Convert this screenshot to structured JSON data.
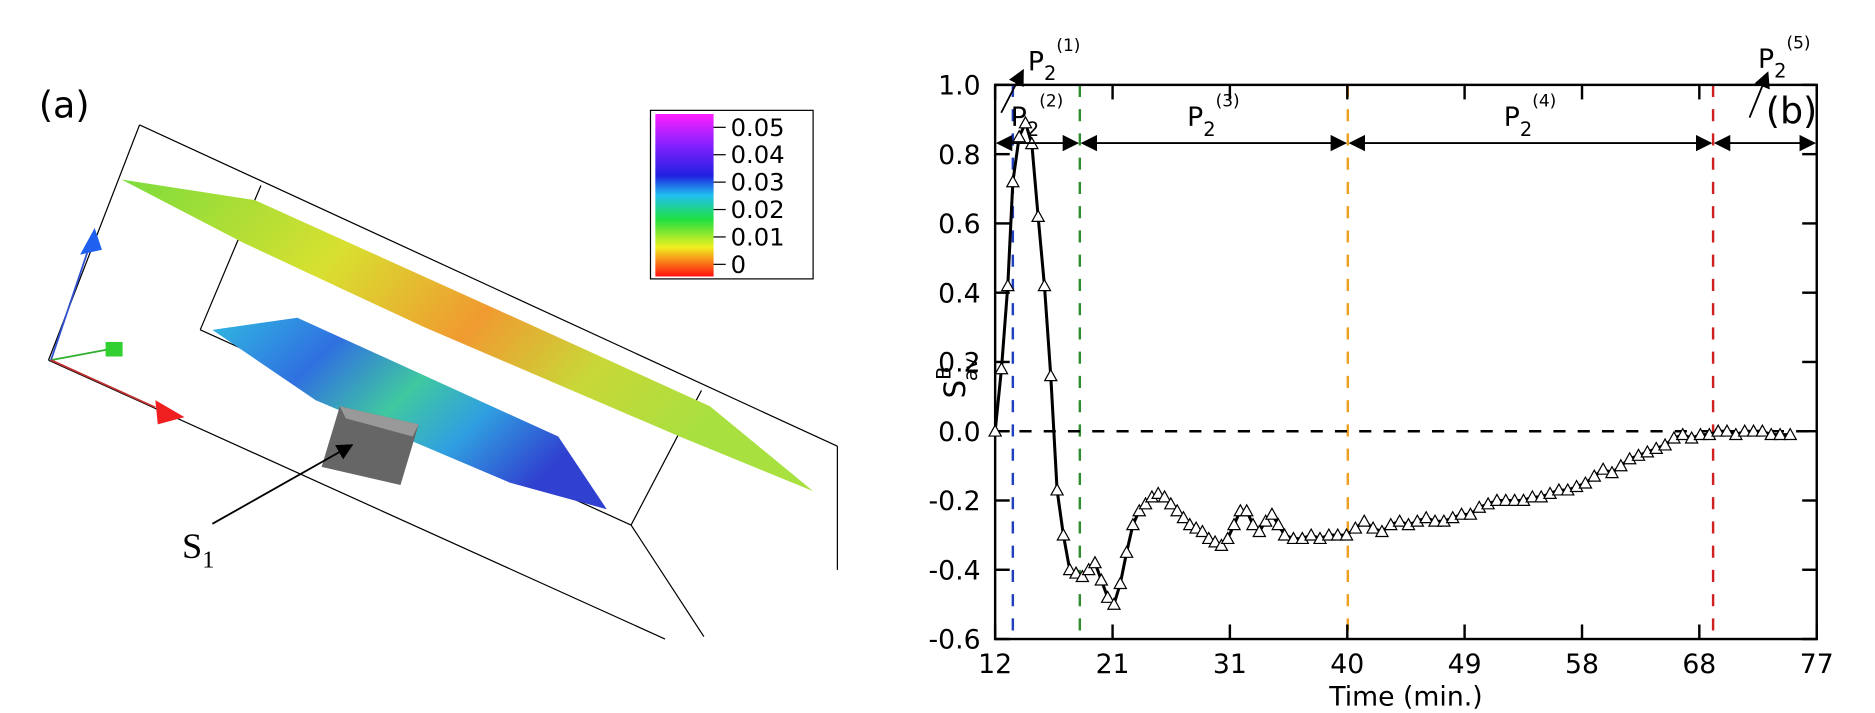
{
  "panel_a": {
    "label": "(a)",
    "colorbar": {
      "lim": [
        0,
        0.05
      ],
      "ticks": [
        0.05,
        0.04,
        0.03,
        0.02,
        0.01,
        0
      ]
    },
    "annotation": {
      "text": "S",
      "subscript": "1"
    }
  },
  "chart_data": {
    "type": "line",
    "panel_label": "(b)",
    "x_label": "Time (min.)",
    "y_label": {
      "text": "S",
      "superscript": "B",
      "subscript": "av"
    },
    "xlim": [
      12,
      77
    ],
    "ylim": [
      -0.6,
      1.0
    ],
    "xticks": [
      12,
      {
        "value": 21.29,
        "label": "21"
      },
      {
        "value": 30.57,
        "label": "31"
      },
      {
        "value": 39.86,
        "label": "40"
      },
      {
        "value": 49.14,
        "label": "49"
      },
      {
        "value": 58.43,
        "label": "58"
      },
      {
        "value": 67.71,
        "label": "68"
      },
      77
    ],
    "yticks": [
      -0.6,
      -0.4,
      -0.2,
      {
        "value": 0,
        "label": "0.0"
      },
      0.2,
      0.4,
      0.6,
      0.8,
      {
        "value": 1,
        "label": "1.0"
      }
    ],
    "color": "#000000",
    "marker": "triangle",
    "x": [
      12.0,
      12.5,
      13.0,
      13.4,
      13.9,
      14.4,
      14.9,
      15.4,
      15.9,
      16.4,
      16.9,
      17.4,
      17.9,
      18.4,
      18.9,
      19.4,
      19.9,
      20.4,
      20.9,
      21.4,
      21.9,
      22.4,
      22.9,
      23.4,
      23.9,
      24.4,
      24.9,
      25.4,
      25.9,
      26.4,
      26.9,
      27.4,
      27.9,
      28.4,
      28.9,
      29.4,
      29.9,
      30.4,
      30.9,
      31.4,
      31.9,
      32.4,
      32.9,
      33.4,
      33.9,
      34.4,
      34.9,
      35.6,
      36.3,
      37.0,
      37.7,
      38.4,
      39.1,
      39.8,
      40.5,
      41.2,
      41.9,
      42.6,
      43.3,
      44.0,
      44.7,
      45.4,
      46.1,
      46.8,
      47.5,
      48.2,
      48.9,
      49.6,
      50.3,
      51.0,
      51.7,
      52.4,
      53.1,
      53.8,
      54.5,
      55.2,
      55.9,
      56.6,
      57.3,
      58.0,
      58.7,
      59.4,
      60.1,
      60.8,
      61.5,
      62.2,
      62.9,
      63.6,
      64.3,
      65.0,
      65.7,
      66.4,
      67.1,
      67.8,
      68.5,
      69.2,
      69.9,
      70.6,
      71.3,
      72.0,
      72.7,
      73.4,
      74.1,
      74.9
    ],
    "values": [
      0.0,
      0.18,
      0.42,
      0.72,
      0.85,
      0.89,
      0.83,
      0.62,
      0.42,
      0.16,
      -0.17,
      -0.3,
      -0.4,
      -0.41,
      -0.42,
      -0.4,
      -0.38,
      -0.43,
      -0.48,
      -0.5,
      -0.44,
      -0.35,
      -0.27,
      -0.23,
      -0.21,
      -0.19,
      -0.18,
      -0.19,
      -0.21,
      -0.23,
      -0.25,
      -0.27,
      -0.28,
      -0.29,
      -0.31,
      -0.32,
      -0.33,
      -0.31,
      -0.27,
      -0.23,
      -0.23,
      -0.27,
      -0.29,
      -0.26,
      -0.24,
      -0.27,
      -0.3,
      -0.31,
      -0.31,
      -0.3,
      -0.31,
      -0.3,
      -0.3,
      -0.3,
      -0.28,
      -0.26,
      -0.28,
      -0.29,
      -0.27,
      -0.26,
      -0.27,
      -0.26,
      -0.25,
      -0.26,
      -0.26,
      -0.25,
      -0.24,
      -0.24,
      -0.22,
      -0.21,
      -0.2,
      -0.2,
      -0.2,
      -0.2,
      -0.19,
      -0.19,
      -0.18,
      -0.17,
      -0.17,
      -0.16,
      -0.15,
      -0.13,
      -0.11,
      -0.12,
      -0.1,
      -0.08,
      -0.07,
      -0.06,
      -0.05,
      -0.04,
      -0.02,
      -0.01,
      -0.02,
      -0.01,
      -0.01,
      0.0,
      0.0,
      -0.01,
      0.0,
      0.0,
      0.0,
      -0.01,
      -0.01,
      -0.01
    ],
    "hlines": [
      {
        "y": 0,
        "color": "#000000"
      }
    ],
    "vlines": [
      {
        "x": 13.4,
        "color": "#1f3fbf"
      },
      {
        "x": 18.7,
        "color": "#2e8b2e"
      },
      {
        "x": 39.9,
        "color": "#f0a020"
      },
      {
        "x": 68.8,
        "color": "#d02020"
      }
    ],
    "periods": [
      {
        "text": "P",
        "subscript": "2",
        "superscript": "(1)",
        "x": [
          12,
          13.4
        ]
      },
      {
        "text": "P",
        "subscript": "2",
        "superscript": "(2)",
        "x": [
          12,
          18.7
        ]
      },
      {
        "text": "P",
        "subscript": "2",
        "superscript": "(3)",
        "x": [
          18.7,
          39.9
        ]
      },
      {
        "text": "P",
        "subscript": "2",
        "superscript": "(4)",
        "x": [
          39.9,
          68.8
        ]
      },
      {
        "text": "P",
        "subscript": "2",
        "superscript": "(5)",
        "x": [
          68.8,
          77
        ]
      }
    ]
  }
}
